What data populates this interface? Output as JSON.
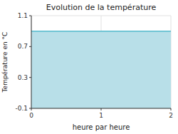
{
  "chart_data": {
    "type": "area",
    "title": "Evolution de la température",
    "xlabel": "heure par heure",
    "ylabel": "Température en °C",
    "x": [
      0,
      2
    ],
    "series": [
      {
        "color": "#55bbcc",
        "values": [
          0.9,
          0.9
        ]
      }
    ],
    "color": "#b8dfe8",
    "xlim": [
      0,
      2
    ],
    "ylim": [
      -0.1,
      1.1
    ],
    "xticks": [
      0,
      1,
      2
    ],
    "yticks": [
      -0.1,
      0.3,
      0.7,
      1.1
    ],
    "grid": true
  }
}
